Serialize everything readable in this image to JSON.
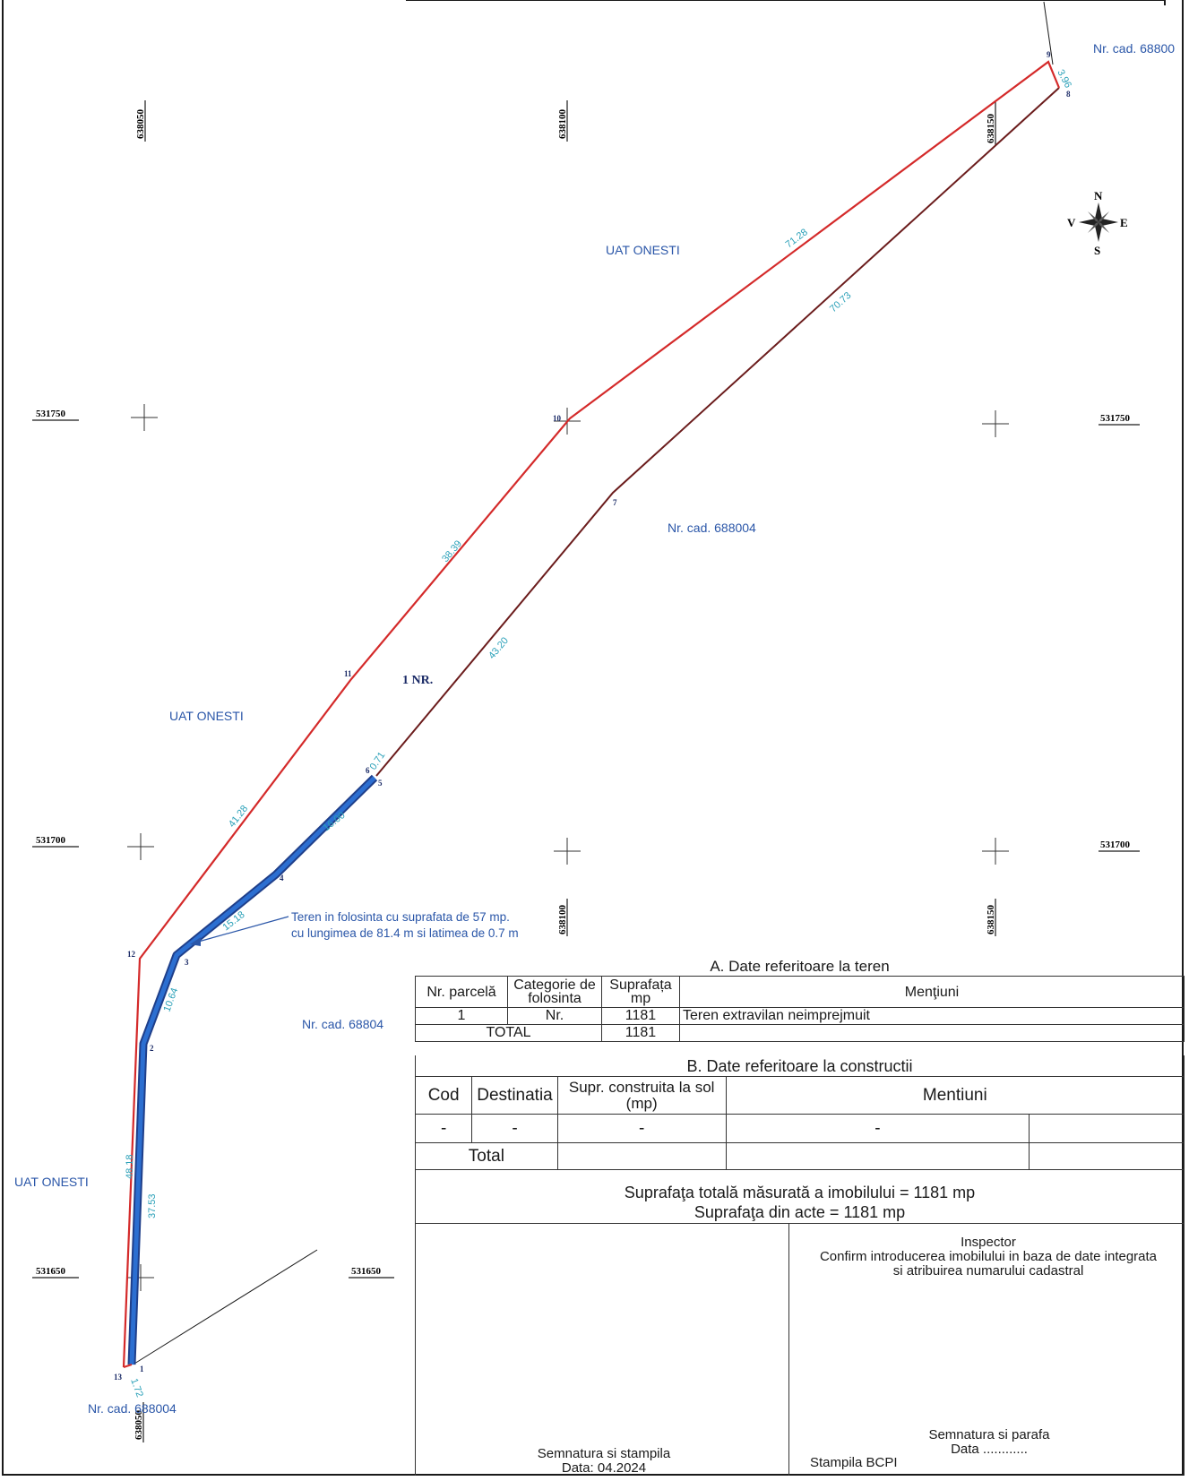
{
  "map": {
    "grid_labels": {
      "y_638050": "638050",
      "y_638100": "638100",
      "y_638150": "638150",
      "x_531750": "531750",
      "x_531700": "531700",
      "x_531650": "531650"
    },
    "areas": {
      "uat_onesti": "UAT ONESTI",
      "nr_cad_68800": "Nr. cad. 68800",
      "nr_cad_688004": "Nr. cad. 688004",
      "nr_cad_68804": "Nr. cad. 68804",
      "nr_cad_688004_bottom": "Nr. cad. 688004"
    },
    "parcel_label": "1 NR.",
    "annotation_line1": "Teren in folosinta cu suprafata de 57 mp.",
    "annotation_line2": "cu lungimea de 81.4 m si latimea de 0.7 m",
    "vertices": [
      "1",
      "2",
      "3",
      "4",
      "5",
      "6",
      "7",
      "8",
      "9",
      "10",
      "11",
      "12",
      "13"
    ],
    "distances": {
      "d9_8": "3.96",
      "d10_9": "71.28",
      "d8_7": "70.73",
      "d11_10": "38.39",
      "d7_6": "43.20",
      "d12_11": "41.28",
      "d6_5": "0.71",
      "d5_4": "16.00",
      "d4_3": "15.18",
      "d3_2": "10.64",
      "d13_12": "48.18",
      "d2_1": "37.53",
      "d1_13": "1.72"
    },
    "compass": {
      "n": "N",
      "s": "S",
      "e": "E",
      "v": "V"
    },
    "colors": {
      "boundary": "#d42a2a",
      "neighbor": "#6b1c1c",
      "strip": "#2c5fb5",
      "label": "#2a56a8",
      "dimension": "#2aa0b8"
    }
  },
  "tableA": {
    "caption": "A. Date referitoare la teren",
    "headers": [
      "Nr. parcelă",
      "Categorie de folosinta",
      "Suprafața mp",
      "Menţiuni"
    ],
    "rows": [
      [
        "1",
        "Nr.",
        "1181",
        "Teren extravilan neimprejmuit"
      ]
    ],
    "total_label": "TOTAL",
    "total_value": "1181"
  },
  "tableB": {
    "caption": "B. Date referitoare la constructii",
    "headers": [
      "Cod",
      "Destinatia",
      "Supr. construita la sol (mp)",
      "Mentiuni"
    ],
    "rows": [
      [
        "-",
        "-",
        "-",
        "-"
      ]
    ],
    "total_label": "Total"
  },
  "summary": {
    "line1": "Suprafaţa totală măsurată a imobilului = 1181 mp",
    "line2": "Suprafaţa din acte = 1181 mp"
  },
  "signatures": {
    "left_line1": "Semnatura si stampila",
    "left_line2": "Data: 04.2024",
    "inspector_title": "Inspector",
    "inspector_line1": "Confirm introducerea imobilului in baza de date integrata",
    "inspector_line2": "si atribuirea numarului cadastral",
    "parafa_line1": "Semnatura si parafa",
    "parafa_line2": "Data ............",
    "stampila_bcpi": "Stampila BCPI"
  }
}
